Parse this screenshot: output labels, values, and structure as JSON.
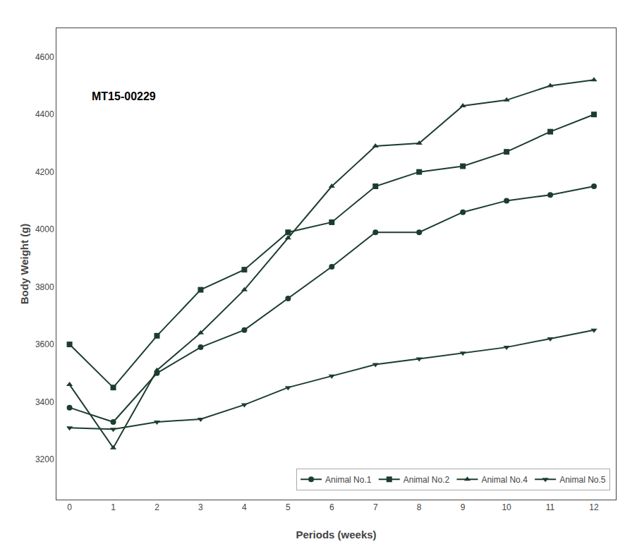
{
  "chart_data": {
    "type": "line",
    "x": [
      0,
      1,
      2,
      3,
      4,
      5,
      6,
      7,
      8,
      9,
      10,
      11,
      12
    ],
    "series": [
      {
        "name": "Animal No.1",
        "color": "#1c3d2e",
        "marker": "circle",
        "values": [
          3380,
          3330,
          3500,
          3590,
          3650,
          3760,
          3870,
          3990,
          3990,
          4060,
          4100,
          4120,
          4150
        ]
      },
      {
        "name": "Animal No.2",
        "color": "#1c3d2e",
        "marker": "square",
        "values": [
          3600,
          3450,
          3630,
          3790,
          3860,
          3990,
          4025,
          4150,
          4200,
          4220,
          4270,
          4340,
          4400
        ]
      },
      {
        "name": "Animal No.4",
        "color": "#1c3d2e",
        "marker": "triangle-up",
        "values": [
          3460,
          3240,
          3510,
          3640,
          3790,
          3970,
          4150,
          4290,
          4300,
          4430,
          4450,
          4500,
          4520
        ]
      },
      {
        "name": "Animal No.5",
        "color": "#1c3d2e",
        "marker": "triangle-down",
        "values": [
          3310,
          3305,
          3330,
          3340,
          3390,
          3450,
          3490,
          3530,
          3550,
          3570,
          3590,
          3620,
          3650
        ]
      }
    ],
    "xlabel": "Periods (weeks)",
    "ylabel": "Body Weight (g)",
    "annotation": "MT15-00229",
    "xlim": [
      -0.3,
      12.5
    ],
    "xticks": [
      0,
      1,
      2,
      3,
      4,
      5,
      6,
      7,
      8,
      9,
      10,
      11,
      12
    ],
    "ylim": [
      3060,
      4700
    ],
    "yticks": [
      3200,
      3400,
      3600,
      3800,
      4000,
      4200,
      4400,
      4600
    ],
    "grid": false,
    "legend": "lower right"
  }
}
